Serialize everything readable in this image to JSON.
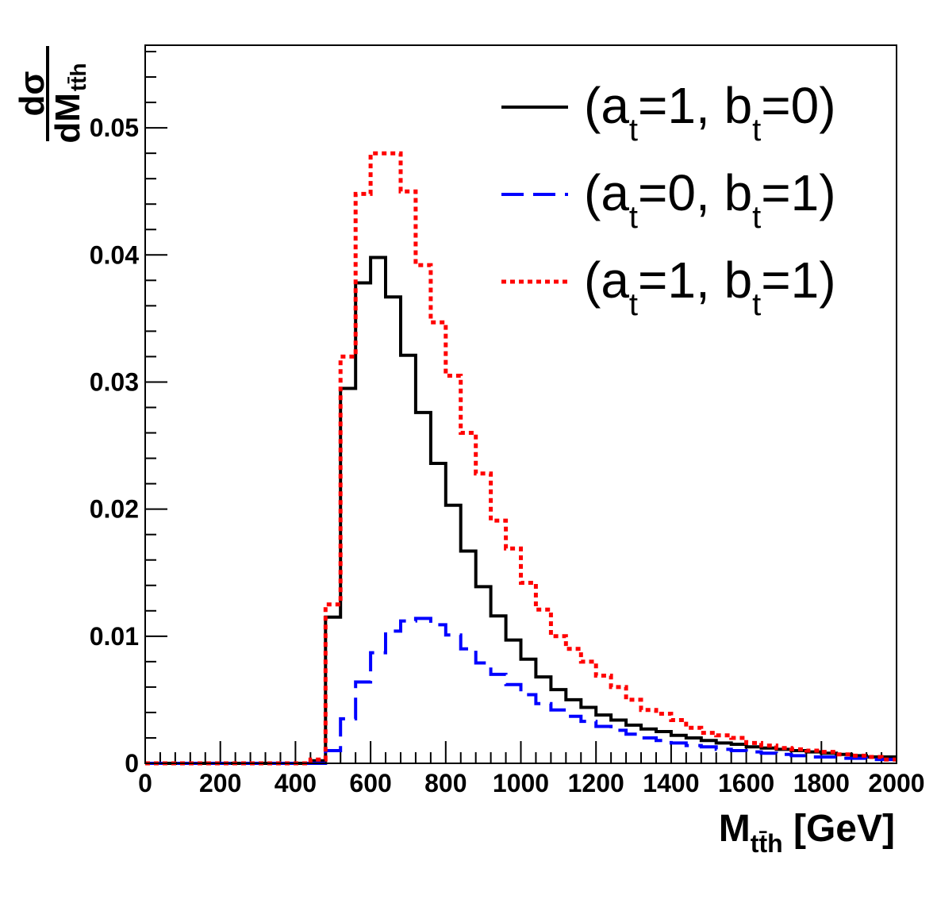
{
  "chart_data": {
    "type": "histogram-step",
    "xlim": [
      0,
      2000
    ],
    "ylim": [
      0,
      0.0565
    ],
    "bin_width": 40,
    "x_ticks": [
      0,
      200,
      400,
      600,
      800,
      1000,
      1200,
      1400,
      1600,
      1800,
      2000
    ],
    "x_tick_labels": [
      "0",
      "200",
      "400",
      "600",
      "800",
      "1000",
      "1200",
      "1400",
      "1600",
      "1800",
      "2000"
    ],
    "y_ticks": [
      0,
      0.01,
      0.02,
      0.03,
      0.04,
      0.05
    ],
    "y_tick_labels": [
      "0",
      "0.01",
      "0.02",
      "0.03",
      "0.04",
      "0.05"
    ],
    "xlabel": {
      "main": "M",
      "sub": "tt̄h",
      "unit": " [GeV]"
    },
    "ylabel": {
      "numerator": "dσ",
      "denominator": "dM",
      "sub": "tt̄h"
    },
    "series": [
      {
        "name": "(a_t=1, b_t=0)",
        "legend_parts": [
          "(a",
          "t",
          "=1, b",
          "t",
          "=0)"
        ],
        "color": "#000000",
        "style": "solid",
        "values": [
          0,
          0,
          0,
          0,
          0,
          0,
          0,
          0,
          0,
          0,
          0,
          0.0002,
          0.0115,
          0.0295,
          0.0378,
          0.0398,
          0.0367,
          0.0321,
          0.0276,
          0.0236,
          0.0203,
          0.0167,
          0.0139,
          0.0116,
          0.0097,
          0.0082,
          0.0068,
          0.0058,
          0.005,
          0.0044,
          0.0038,
          0.0034,
          0.003,
          0.0027,
          0.0025,
          0.0022,
          0.002,
          0.0018,
          0.0016,
          0.0015,
          0.0013,
          0.0012,
          0.0011,
          0.001,
          0.0009,
          0.0008,
          0.0007,
          0.0006,
          0.0005,
          0.0005
        ]
      },
      {
        "name": "(a_t=0, b_t=1)",
        "legend_parts": [
          "(a",
          "t",
          "=0, b",
          "t",
          "=1)"
        ],
        "color": "#0000ff",
        "style": "dashed",
        "values": [
          0,
          0,
          0,
          0,
          0,
          0,
          0,
          0,
          0,
          0,
          0,
          0,
          0.001,
          0.0035,
          0.0064,
          0.0087,
          0.0104,
          0.0112,
          0.0114,
          0.0109,
          0.0101,
          0.009,
          0.0079,
          0.007,
          0.0062,
          0.0054,
          0.0047,
          0.0042,
          0.0037,
          0.0033,
          0.0029,
          0.0026,
          0.0023,
          0.002,
          0.0018,
          0.0016,
          0.0014,
          0.0013,
          0.0011,
          0.001,
          0.0009,
          0.0008,
          0.0007,
          0.0006,
          0.0005,
          0.0005,
          0.0004,
          0.0004,
          0.0003,
          0.0003
        ]
      },
      {
        "name": "(a_t=1, b_t=1)",
        "legend_parts": [
          "(a",
          "t",
          "=1, b",
          "t",
          "=1)"
        ],
        "color": "#ff0000",
        "style": "dotted",
        "values": [
          0,
          0,
          0,
          0,
          0,
          0,
          0,
          0,
          0,
          0,
          0,
          0.0003,
          0.0125,
          0.032,
          0.0448,
          0.048,
          0.048,
          0.045,
          0.0392,
          0.0347,
          0.0305,
          0.026,
          0.0228,
          0.0191,
          0.0169,
          0.0142,
          0.0121,
          0.01,
          0.009,
          0.008,
          0.0069,
          0.006,
          0.005,
          0.0042,
          0.0039,
          0.0034,
          0.0028,
          0.0024,
          0.0022,
          0.002,
          0.0016,
          0.0014,
          0.0012,
          0.0011,
          0.001,
          0.0009,
          0.0007,
          0.0006,
          0.0005,
          0.0003
        ]
      }
    ]
  }
}
